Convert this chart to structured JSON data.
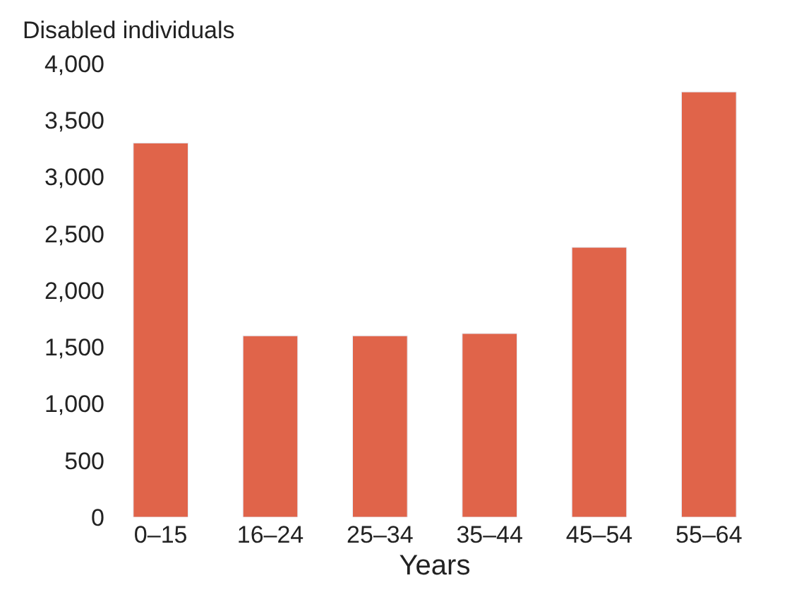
{
  "chart_data": {
    "type": "bar",
    "ylabel": "Disabled individuals",
    "xlabel": "Years",
    "categories": [
      "0–15",
      "16–24",
      "25–34",
      "35–44",
      "45–54",
      "55–64"
    ],
    "values": [
      3300,
      1600,
      1600,
      1620,
      2380,
      3750
    ],
    "color": "#e0644a",
    "ylim": [
      0,
      4000
    ],
    "yticks": [
      0,
      {
        "value": 500,
        "label": "500"
      },
      {
        "value": 1000,
        "label": "1,000"
      },
      {
        "value": 1500,
        "label": "1,500"
      },
      {
        "value": 2000,
        "label": "2,000"
      },
      {
        "value": 2500,
        "label": "2,500"
      },
      {
        "value": 3000,
        "label": "3,000"
      },
      {
        "value": 3500,
        "label": "3,500"
      },
      {
        "value": 4000,
        "label": "4,000"
      }
    ],
    "legend": false
  }
}
